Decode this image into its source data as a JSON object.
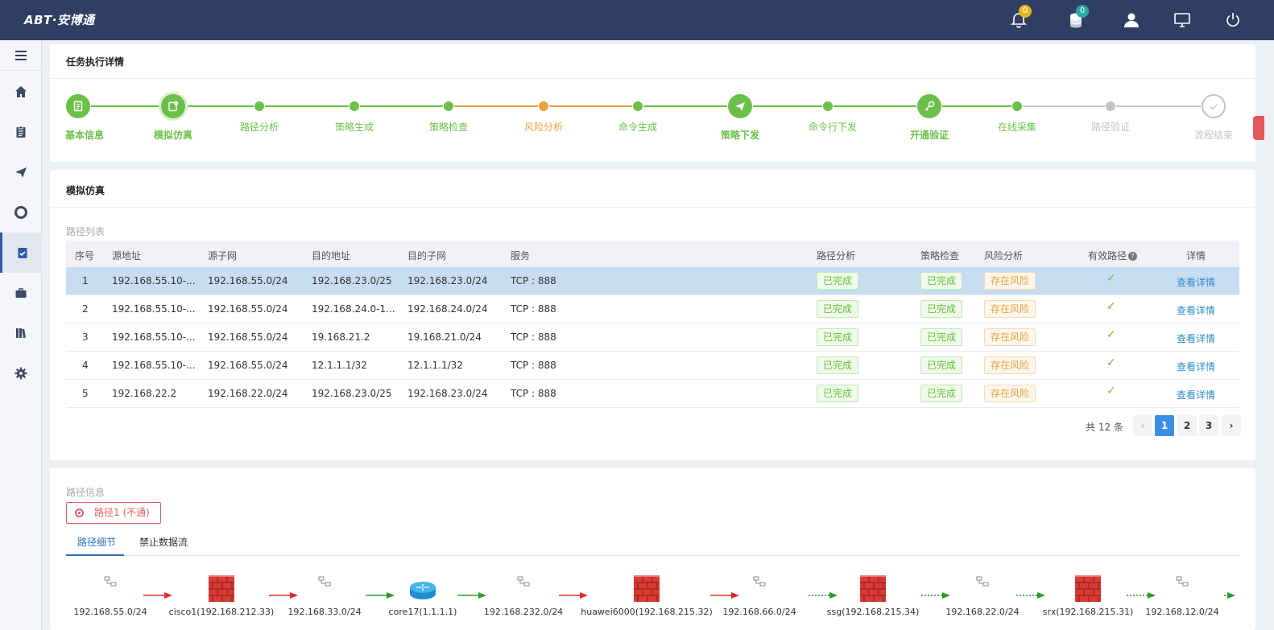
{
  "app": {
    "logo": "ABT·安博通"
  },
  "topbar": {
    "alerts_badge": "0",
    "db_badge": "0",
    "colors": {
      "bg": "#2f3e62",
      "alerts_badge": "#e5b623",
      "db_badge": "#2aa8a0"
    },
    "icons": [
      "bell-icon",
      "database-icon",
      "user-icon",
      "monitor-icon",
      "power-icon"
    ]
  },
  "sidebar": {
    "items": [
      {
        "icon": "home-icon"
      },
      {
        "icon": "clipboard-icon"
      },
      {
        "icon": "send-icon"
      },
      {
        "icon": "lifebuoy-icon"
      },
      {
        "icon": "task-check-icon",
        "active": true
      },
      {
        "icon": "briefcase-icon"
      },
      {
        "icon": "library-icon"
      },
      {
        "icon": "gear-icon"
      }
    ]
  },
  "task": {
    "title": "任务执行详情",
    "steps": [
      {
        "label": "基本信息",
        "state": "done",
        "kind": "big",
        "icon": "document-icon"
      },
      {
        "label": "模拟仿真",
        "state": "current",
        "kind": "big",
        "icon": "simulate-icon"
      },
      {
        "label": "路径分析",
        "state": "done",
        "kind": "dot"
      },
      {
        "label": "策略生成",
        "state": "done",
        "kind": "dot"
      },
      {
        "label": "策略检查",
        "state": "done",
        "kind": "dot"
      },
      {
        "label": "风险分析",
        "state": "warn",
        "kind": "dot"
      },
      {
        "label": "命令生成",
        "state": "done",
        "kind": "dot"
      },
      {
        "label": "策略下发",
        "state": "done",
        "kind": "big",
        "icon": "paper-plane-icon"
      },
      {
        "label": "命令行下发",
        "state": "done",
        "kind": "dot"
      },
      {
        "label": "开通验证",
        "state": "done",
        "kind": "big",
        "icon": "key-icon"
      },
      {
        "label": "在线采集",
        "state": "done",
        "kind": "dot"
      },
      {
        "label": "路径验证",
        "state": "pending",
        "kind": "dot"
      },
      {
        "label": "流程结束",
        "state": "pending",
        "kind": "big",
        "icon": "check-circle-icon"
      }
    ],
    "colors": {
      "done": "#6cc04a",
      "warn": "#e6a23c",
      "pending": "#c0c4cc"
    }
  },
  "simulation": {
    "title": "模拟仿真",
    "list_title": "路径列表",
    "columns": [
      "序号",
      "源地址",
      "源子网",
      "目的地址",
      "目的子网",
      "服务",
      "路径分析",
      "策略检查",
      "风险分析",
      "有效路径",
      "详情"
    ],
    "rows": [
      {
        "no": "1",
        "src": "192.168.55.10-...",
        "src_net": "192.168.55.0/24",
        "dst": "192.168.23.0/25",
        "dst_net": "192.168.23.0/24",
        "service": "TCP : 888",
        "path": "已完成",
        "policy": "已完成",
        "risk": "存在风险",
        "valid": "✓",
        "detail": "查看详情"
      },
      {
        "no": "2",
        "src": "192.168.55.10-...",
        "src_net": "192.168.55.0/24",
        "dst": "192.168.24.0-1...",
        "dst_net": "192.168.24.0/24",
        "service": "TCP : 888",
        "path": "已完成",
        "policy": "已完成",
        "risk": "存在风险",
        "valid": "✓",
        "detail": "查看详情"
      },
      {
        "no": "3",
        "src": "192.168.55.10-...",
        "src_net": "192.168.55.0/24",
        "dst": "19.168.21.2",
        "dst_net": "19.168.21.0/24",
        "service": "TCP : 888",
        "path": "已完成",
        "policy": "已完成",
        "risk": "存在风险",
        "valid": "✓",
        "detail": "查看详情"
      },
      {
        "no": "4",
        "src": "192.168.55.10-...",
        "src_net": "192.168.55.0/24",
        "dst": "12.1.1.1/32",
        "dst_net": "12.1.1.1/32",
        "service": "TCP : 888",
        "path": "已完成",
        "policy": "已完成",
        "risk": "存在风险",
        "valid": "✓",
        "detail": "查看详情"
      },
      {
        "no": "5",
        "src": "192.168.22.2",
        "src_net": "192.168.22.0/24",
        "dst": "192.168.23.0/25",
        "dst_net": "192.168.23.0/24",
        "service": "TCP : 888",
        "path": "已完成",
        "policy": "已完成",
        "risk": "存在风险",
        "valid": "✓",
        "detail": "查看详情"
      }
    ],
    "pagination": {
      "total": "共 12 条",
      "pages": [
        "1",
        "2",
        "3"
      ],
      "current": "1",
      "prev": "‹",
      "next": "›"
    }
  },
  "path_info": {
    "title": "路径信息",
    "path_button": "路径1 (不通)",
    "tabs": [
      "路径细节",
      "禁止数据流"
    ],
    "nodes": [
      {
        "label": "192.168.55.0/24",
        "type": "subnet"
      },
      {
        "label": "cisco1(192.168.212.33)",
        "type": "firewall"
      },
      {
        "label": "192.168.33.0/24",
        "type": "subnet"
      },
      {
        "label": "core17(1.1.1.1)",
        "type": "router"
      },
      {
        "label": "192.168.232.0/24",
        "type": "subnet"
      },
      {
        "label": "huawei6000(192.168.215.32)",
        "type": "firewall"
      },
      {
        "label": "192.168.66.0/24",
        "type": "subnet"
      },
      {
        "label": "ssg(192.168.215.34)",
        "type": "firewall"
      },
      {
        "label": "192.168.22.0/24",
        "type": "subnet"
      },
      {
        "label": "srx(192.168.215.31)",
        "type": "firewall"
      },
      {
        "label": "192.168.12.0/24",
        "type": "subnet"
      }
    ],
    "links": [
      "blocked",
      "blocked",
      "allowed",
      "allowed",
      "blocked",
      "blocked",
      "dashed",
      "dashed",
      "dashed",
      "dashed",
      "dashed"
    ]
  }
}
